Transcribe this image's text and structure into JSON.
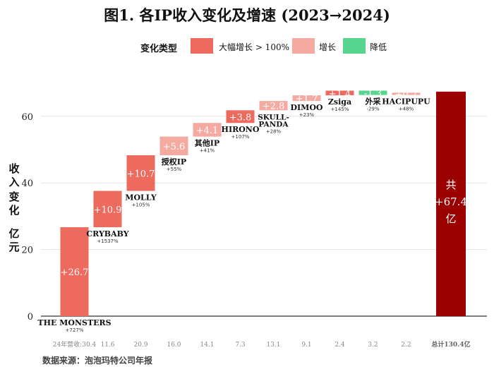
{
  "title": "图1. 各IP收入变化及增速 (2023→2024)",
  "legend": {
    "label": "变化类型",
    "items": [
      {
        "name": "大幅增长 > 100%",
        "color": "#ec6a5e"
      },
      {
        "name": "增长",
        "color": "#f4aaa0"
      },
      {
        "name": "降低",
        "color": "#57d48d"
      }
    ]
  },
  "y_axis_label": [
    "收入",
    "变化",
    "亿元"
  ],
  "source": "数据来源：泡泡玛特公司年报",
  "chart_data": {
    "type": "waterfall",
    "ylim": [
      -2,
      70
    ],
    "yticks": [
      0,
      20,
      40,
      60
    ],
    "grid": true,
    "colors": {
      "big": "#ec6a5e",
      "grow": "#f4aaa0",
      "down": "#57d48d",
      "total": "#9a0000"
    },
    "bars": [
      {
        "name": "THE MONSTERS",
        "change": 26.7,
        "label": "+26.7",
        "growth": "+727%",
        "base2024": "24年营收:30.4",
        "type": "big"
      },
      {
        "name": "CRYBABY",
        "change": 10.9,
        "label": "+10.9",
        "growth": "+1537%",
        "base2024": "11.6",
        "type": "big"
      },
      {
        "name": "MOLLY",
        "change": 10.7,
        "label": "+10.7",
        "growth": "+105%",
        "base2024": "20.9",
        "type": "big"
      },
      {
        "name": "授权IP",
        "change": 5.6,
        "label": "+5.6",
        "growth": "+55%",
        "base2024": "16.0",
        "type": "grow"
      },
      {
        "name": "其他IP",
        "change": 4.1,
        "label": "+4.1",
        "growth": "+41%",
        "base2024": "14.1",
        "type": "grow"
      },
      {
        "name": "HIRONO",
        "change": 3.8,
        "label": "+3.8",
        "growth": "+107%",
        "base2024": "7.3",
        "type": "big"
      },
      {
        "name": "SKULL-\nPANDA",
        "change": 2.8,
        "label": "+2.8",
        "growth": "+28%",
        "base2024": "13.1",
        "type": "grow"
      },
      {
        "name": "DIMOO",
        "change": 1.7,
        "label": "+1.7",
        "growth": "+23%",
        "base2024": "9.1",
        "type": "grow"
      },
      {
        "name": "Zsiga",
        "change": 1.4,
        "label": "+1.4",
        "growth": "+145%",
        "base2024": "2.4",
        "type": "big"
      },
      {
        "name": "外采",
        "change": -1.3,
        "label": "-1.3",
        "growth": "-29%",
        "base2024": "3.2",
        "type": "down"
      },
      {
        "name": "HACIPUPU",
        "change": 0.7,
        "label": "+0.7",
        "growth": "+48%",
        "base2024": "2.2",
        "type": "grow"
      }
    ],
    "total": {
      "label_lines": [
        "共",
        "+67.4",
        "亿"
      ],
      "value": 67.4,
      "base2024": "总计130.4亿"
    }
  }
}
